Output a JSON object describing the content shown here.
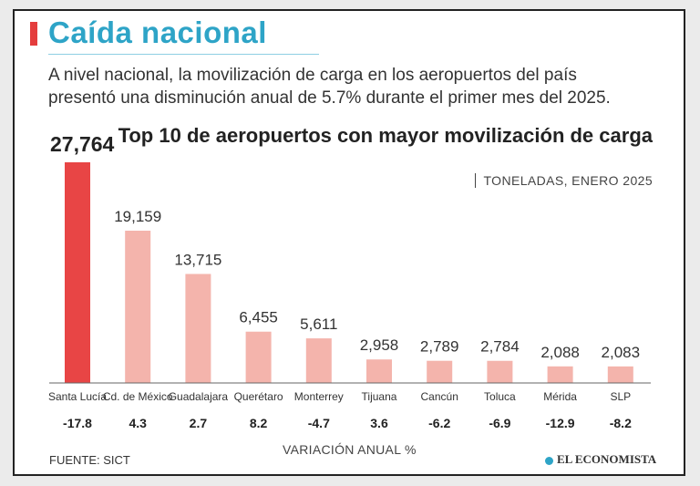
{
  "header": {
    "title": "Caída nacional",
    "intro": "A nivel nacional, la movilización de carga en los aeropuertos del país presentó una disminución anual de 5.7% durante el primer mes del 2025."
  },
  "chart_data": {
    "type": "bar",
    "title": "Top 10 de aeropuertos con mayor movilización de carga",
    "subtitle": "TONELADAS, ENERO 2025",
    "categories": [
      "Santa Lucía",
      "Cd. de México",
      "Guadalajara",
      "Querétaro",
      "Monterrey",
      "Tijuana",
      "Cancún",
      "Toluca",
      "Mérida",
      "SLP"
    ],
    "values": [
      27764,
      19159,
      13715,
      6455,
      5611,
      2958,
      2789,
      2784,
      2088,
      2083
    ],
    "value_labels": [
      "27,764",
      "19,159",
      "13,715",
      "6,455",
      "5,611",
      "2,958",
      "2,789",
      "2,784",
      "2,088",
      "2,083"
    ],
    "annual_change_pct": [
      "-17.8",
      "4.3",
      "2.7",
      "8.2",
      "-4.7",
      "3.6",
      "-6.2",
      "-6.9",
      "-12.9",
      "-8.2"
    ],
    "change_axis_label": "VARIACIÓN ANUAL %",
    "ylim": [
      0,
      27764
    ],
    "highlight_color": "#e84545",
    "bar_color": "#f4b4ac"
  },
  "footer": {
    "source": "FUENTE: SICT",
    "logo": "EL ECONOMISTA"
  }
}
